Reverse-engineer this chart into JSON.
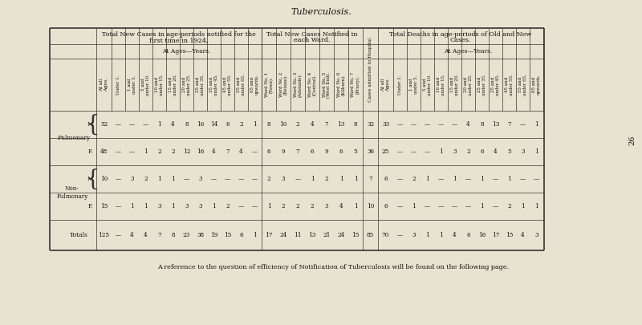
{
  "title": "Tuberculosis.",
  "footnote": "A reference to the question of efficiency of Notification of Tuberculosis will be found on the following page.",
  "bg_color": "#e8e3d0",
  "page_number": "26",
  "section1_header_l1": "Total New Cases in age-periods notified for the",
  "section1_header_l2": "first time in 1924,",
  "section2_header_l1": "Total New Cases Notified in",
  "section2_header_l2": "each Ward.",
  "section3_header": "Cases admitted to Hospital.",
  "section4_header_l1": "Total Deaths in age-periods of Old and New",
  "section4_header_l2": "Cases.",
  "ages_years_label": "At Ages—Years.",
  "at_all_ages_label": "At all Ages.",
  "col_headers_section1": [
    "Under 1.",
    "1 and\nunder 5.",
    "5 and\nunder 10.",
    "10 and\nunder 15.",
    "15 and\nunder 20.",
    "20 and\nunder 25.",
    "25 and\nunder 35.",
    "35 and\nunder 45.",
    "45 and\nunder 55.",
    "55 and\nunder 65.",
    "65 and\nupwards."
  ],
  "col_headers_section2": [
    "Ward No. 1\n(Town).",
    "Ward No. 2\n(Belsize).",
    "Ward No. 3\n(Adelaide).",
    "Ward No. 4\n(Central).",
    "Ward No. 5\n(West End).",
    "Ward No. 6\n(Kilburn).",
    "Ward No. 7\n(Priory)."
  ],
  "col_headers_section4": [
    "Under 1.",
    "1 and\nunder 5.",
    "5 and\nunder 10.",
    "10 and\nunder 15.",
    "15 and\nunder 20.",
    "20 and\nunder 25.",
    "25 and\nunder 35.",
    "35 and\nunder 45.",
    "45 and\nunder 55.",
    "55 and\nunder 65.",
    "65 and\nupwards."
  ],
  "data": {
    "pulm_m": {
      "all_ages": "52",
      "s1": [
        "—",
        "—",
        "—",
        "1",
        "4",
        "8",
        "16",
        "14",
        "6",
        "2",
        "1"
      ],
      "s2": [
        "8",
        "10",
        "2",
        "4",
        "7",
        "13",
        "8"
      ],
      "hosp": "32",
      "s4_all": "33",
      "s4": [
        "—",
        "—",
        "—",
        "—",
        "—",
        "4",
        "8",
        "13",
        "7",
        "—",
        "1"
      ]
    },
    "pulm_f": {
      "all_ages": "48",
      "s1": [
        "—",
        "—",
        "1",
        "2",
        "2",
        "12",
        "16",
        "4",
        "7",
        "4",
        "—"
      ],
      "s2": [
        "6",
        "9",
        "7",
        "6",
        "9",
        "6",
        "5"
      ],
      "hosp": "36",
      "s4_all": "25",
      "s4": [
        "—",
        "—",
        "—",
        "1",
        "3",
        "2",
        "6",
        "4",
        "5",
        "3",
        "1"
      ]
    },
    "nonp_m": {
      "all_ages": "10",
      "s1": [
        "—",
        "3",
        "2",
        "1",
        "1",
        "—",
        "3",
        "—",
        "—",
        "—",
        "—"
      ],
      "s2": [
        "2",
        "3",
        "—",
        "1",
        "2",
        "1",
        "1"
      ],
      "hosp": "7",
      "s4_all": "6",
      "s4": [
        "—",
        "2",
        "1",
        "—",
        "1",
        "—",
        "1",
        "—",
        "1",
        "—",
        "—"
      ]
    },
    "nonp_f": {
      "all_ages": "15",
      "s1": [
        "—",
        "1",
        "1",
        "3",
        "1",
        "3",
        "3",
        "1",
        "2",
        "—",
        "—"
      ],
      "s2": [
        "1",
        "2",
        "2",
        "2",
        "3",
        "4",
        "1"
      ],
      "hosp": "10",
      "s4_all": "6",
      "s4": [
        "—",
        "1",
        "—",
        "—",
        "—",
        "—",
        "1",
        "—",
        "2",
        "1",
        "1"
      ]
    },
    "totals": {
      "all_ages": "125",
      "s1": [
        "—",
        "4",
        "4",
        "7",
        "8",
        "23",
        "38",
        "19",
        "15",
        "6",
        "1"
      ],
      "s2": [
        "17",
        "24",
        "11",
        "13",
        "21",
        "24",
        "15"
      ],
      "hosp": "85",
      "s4_all": "70",
      "s4": [
        "—",
        "3",
        "1",
        "1",
        "4",
        "6",
        "16",
        "17",
        "15",
        "4",
        "3"
      ]
    }
  }
}
